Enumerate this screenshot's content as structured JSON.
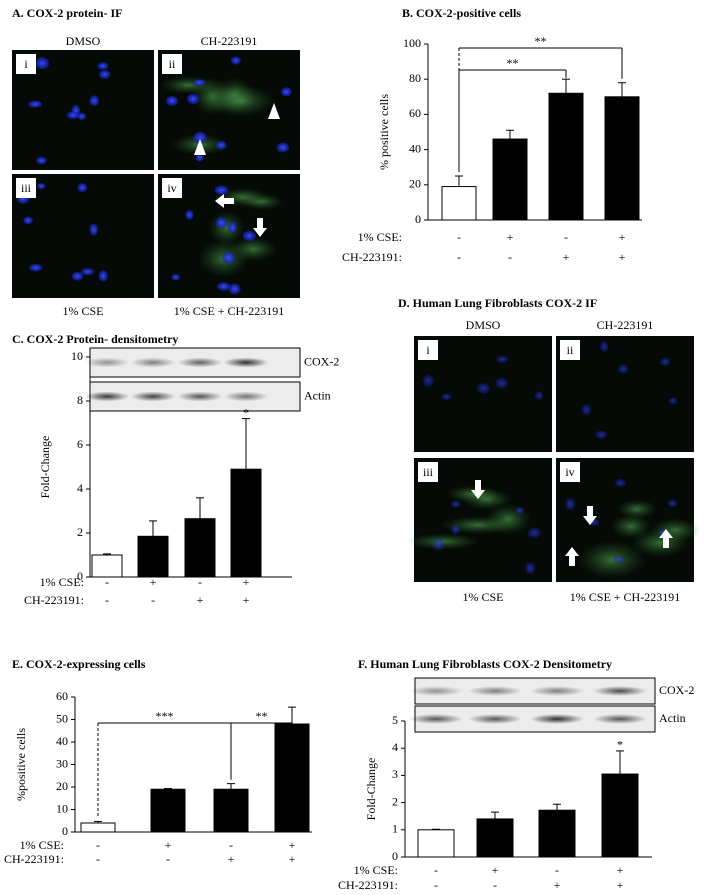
{
  "image_panels": [
    {
      "title": "A. COX-2 protein- IF",
      "columns": [
        "DMSO",
        "CH-223191"
      ],
      "footers": [
        "1% CSE",
        "1% CSE + CH-223191"
      ],
      "numerals": [
        "i",
        "ii",
        "iii",
        "iv"
      ]
    },
    {
      "title": "D. Human Lung Fibroblasts COX-2 IF",
      "columns": [
        "DMSO",
        "CH-223191"
      ],
      "footers": [
        "1% CSE",
        "1% CSE + CH-223191"
      ],
      "numerals": [
        "i",
        "ii",
        "iii",
        "iv"
      ]
    }
  ],
  "chart_data": [
    {
      "type": "bar",
      "title": "B. COX-2-positive cells",
      "y_label": "% positive cells",
      "values": [
        19,
        46,
        72,
        70
      ],
      "errors": [
        6,
        5,
        8,
        8
      ],
      "colors": [
        "#ffffff",
        "#000000",
        "#000000",
        "#000000"
      ],
      "ylim": [
        0,
        100
      ],
      "yticks": [
        0,
        20,
        40,
        60,
        80,
        100
      ],
      "condition_rows": [
        {
          "label": "1% CSE:",
          "values": [
            "-",
            "+",
            "-",
            "+"
          ]
        },
        {
          "label": "CH-223191:",
          "values": [
            "-",
            "-",
            "+",
            "+"
          ]
        }
      ],
      "significance": [
        {
          "from": 0,
          "to": 2,
          "label": "**"
        },
        {
          "from": 0,
          "to": 3,
          "label": "**"
        }
      ]
    },
    {
      "type": "bar",
      "title": "C. COX-2 Protein- densitometry",
      "y_label": "Fold-Change",
      "blot_labels": [
        "COX-2",
        "Actin"
      ],
      "values": [
        1,
        1.85,
        2.65,
        4.9
      ],
      "errors": [
        0.05,
        0.7,
        0.95,
        2.3
      ],
      "colors": [
        "#ffffff",
        "#000000",
        "#000000",
        "#000000"
      ],
      "ylim": [
        0,
        10
      ],
      "yticks": [
        0,
        2,
        4,
        6,
        8,
        10
      ],
      "bar_annotations": [
        null,
        null,
        null,
        "*"
      ],
      "condition_rows": [
        {
          "label": "1% CSE:",
          "values": [
            "-",
            "+",
            "-",
            "+"
          ]
        },
        {
          "label": "CH-223191:",
          "values": [
            "-",
            "-",
            "+",
            "+"
          ]
        }
      ]
    },
    {
      "type": "bar",
      "title": "E. COX-2-expressing cells",
      "y_label": "%positive cells",
      "values": [
        4,
        19,
        19,
        48
      ],
      "errors": [
        0.7,
        0.3,
        2.5,
        7.5
      ],
      "colors": [
        "#ffffff",
        "#000000",
        "#000000",
        "#000000"
      ],
      "ylim": [
        0,
        60
      ],
      "yticks": [
        0,
        10,
        20,
        30,
        40,
        50,
        60
      ],
      "condition_rows": [
        {
          "label": "1% CSE:",
          "values": [
            "-",
            "+",
            "-",
            "+"
          ]
        },
        {
          "label": "CH-223191:",
          "values": [
            "-",
            "-",
            "+",
            "+"
          ]
        }
      ],
      "significance": [
        {
          "from": 0,
          "to": 2,
          "label": "***"
        },
        {
          "from": 2,
          "to": 3,
          "label": "**"
        }
      ]
    },
    {
      "type": "bar",
      "title": "F. Human Lung Fibroblasts COX-2 Densitometry",
      "y_label": "Fold-Change",
      "blot_labels": [
        "COX-2",
        "Actin"
      ],
      "values": [
        1,
        1.4,
        1.72,
        3.05
      ],
      "errors": [
        0.02,
        0.25,
        0.22,
        0.85
      ],
      "colors": [
        "#ffffff",
        "#000000",
        "#000000",
        "#000000"
      ],
      "ylim": [
        0,
        5
      ],
      "yticks": [
        0,
        1,
        2,
        3,
        4,
        5
      ],
      "bar_annotations": [
        null,
        null,
        null,
        "*"
      ],
      "condition_rows": [
        {
          "label": "1% CSE:",
          "values": [
            "-",
            "+",
            "-",
            "+"
          ]
        },
        {
          "label": "CH-223191:",
          "values": [
            "-",
            "-",
            "+",
            "+"
          ]
        }
      ]
    }
  ]
}
